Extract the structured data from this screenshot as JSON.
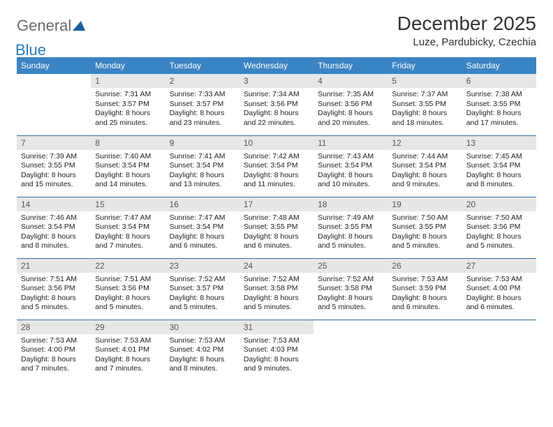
{
  "brand": {
    "word1": "General",
    "word2": "Blue",
    "tri_color": "#1c5f9e"
  },
  "title": "December 2025",
  "location": "Luze, Pardubicky, Czechia",
  "header_bg": "#3b84c4",
  "daynum_bg": "#e7e7e7",
  "row_border": "#3b6fa0",
  "weekdays": [
    "Sunday",
    "Monday",
    "Tuesday",
    "Wednesday",
    "Thursday",
    "Friday",
    "Saturday"
  ],
  "weeks": [
    [
      {
        "n": "",
        "sunrise": "",
        "sunset": "",
        "daylight": ""
      },
      {
        "n": "1",
        "sunrise": "7:31 AM",
        "sunset": "3:57 PM",
        "daylight": "8 hours and 25 minutes."
      },
      {
        "n": "2",
        "sunrise": "7:33 AM",
        "sunset": "3:57 PM",
        "daylight": "8 hours and 23 minutes."
      },
      {
        "n": "3",
        "sunrise": "7:34 AM",
        "sunset": "3:56 PM",
        "daylight": "8 hours and 22 minutes."
      },
      {
        "n": "4",
        "sunrise": "7:35 AM",
        "sunset": "3:56 PM",
        "daylight": "8 hours and 20 minutes."
      },
      {
        "n": "5",
        "sunrise": "7:37 AM",
        "sunset": "3:55 PM",
        "daylight": "8 hours and 18 minutes."
      },
      {
        "n": "6",
        "sunrise": "7:38 AM",
        "sunset": "3:55 PM",
        "daylight": "8 hours and 17 minutes."
      }
    ],
    [
      {
        "n": "7",
        "sunrise": "7:39 AM",
        "sunset": "3:55 PM",
        "daylight": "8 hours and 15 minutes."
      },
      {
        "n": "8",
        "sunrise": "7:40 AM",
        "sunset": "3:54 PM",
        "daylight": "8 hours and 14 minutes."
      },
      {
        "n": "9",
        "sunrise": "7:41 AM",
        "sunset": "3:54 PM",
        "daylight": "8 hours and 13 minutes."
      },
      {
        "n": "10",
        "sunrise": "7:42 AM",
        "sunset": "3:54 PM",
        "daylight": "8 hours and 11 minutes."
      },
      {
        "n": "11",
        "sunrise": "7:43 AM",
        "sunset": "3:54 PM",
        "daylight": "8 hours and 10 minutes."
      },
      {
        "n": "12",
        "sunrise": "7:44 AM",
        "sunset": "3:54 PM",
        "daylight": "8 hours and 9 minutes."
      },
      {
        "n": "13",
        "sunrise": "7:45 AM",
        "sunset": "3:54 PM",
        "daylight": "8 hours and 8 minutes."
      }
    ],
    [
      {
        "n": "14",
        "sunrise": "7:46 AM",
        "sunset": "3:54 PM",
        "daylight": "8 hours and 8 minutes."
      },
      {
        "n": "15",
        "sunrise": "7:47 AM",
        "sunset": "3:54 PM",
        "daylight": "8 hours and 7 minutes."
      },
      {
        "n": "16",
        "sunrise": "7:47 AM",
        "sunset": "3:54 PM",
        "daylight": "8 hours and 6 minutes."
      },
      {
        "n": "17",
        "sunrise": "7:48 AM",
        "sunset": "3:55 PM",
        "daylight": "8 hours and 6 minutes."
      },
      {
        "n": "18",
        "sunrise": "7:49 AM",
        "sunset": "3:55 PM",
        "daylight": "8 hours and 5 minutes."
      },
      {
        "n": "19",
        "sunrise": "7:50 AM",
        "sunset": "3:55 PM",
        "daylight": "8 hours and 5 minutes."
      },
      {
        "n": "20",
        "sunrise": "7:50 AM",
        "sunset": "3:56 PM",
        "daylight": "8 hours and 5 minutes."
      }
    ],
    [
      {
        "n": "21",
        "sunrise": "7:51 AM",
        "sunset": "3:56 PM",
        "daylight": "8 hours and 5 minutes."
      },
      {
        "n": "22",
        "sunrise": "7:51 AM",
        "sunset": "3:56 PM",
        "daylight": "8 hours and 5 minutes."
      },
      {
        "n": "23",
        "sunrise": "7:52 AM",
        "sunset": "3:57 PM",
        "daylight": "8 hours and 5 minutes."
      },
      {
        "n": "24",
        "sunrise": "7:52 AM",
        "sunset": "3:58 PM",
        "daylight": "8 hours and 5 minutes."
      },
      {
        "n": "25",
        "sunrise": "7:52 AM",
        "sunset": "3:58 PM",
        "daylight": "8 hours and 5 minutes."
      },
      {
        "n": "26",
        "sunrise": "7:53 AM",
        "sunset": "3:59 PM",
        "daylight": "8 hours and 6 minutes."
      },
      {
        "n": "27",
        "sunrise": "7:53 AM",
        "sunset": "4:00 PM",
        "daylight": "8 hours and 6 minutes."
      }
    ],
    [
      {
        "n": "28",
        "sunrise": "7:53 AM",
        "sunset": "4:00 PM",
        "daylight": "8 hours and 7 minutes."
      },
      {
        "n": "29",
        "sunrise": "7:53 AM",
        "sunset": "4:01 PM",
        "daylight": "8 hours and 7 minutes."
      },
      {
        "n": "30",
        "sunrise": "7:53 AM",
        "sunset": "4:02 PM",
        "daylight": "8 hours and 8 minutes."
      },
      {
        "n": "31",
        "sunrise": "7:53 AM",
        "sunset": "4:03 PM",
        "daylight": "8 hours and 9 minutes."
      },
      {
        "n": "",
        "sunrise": "",
        "sunset": "",
        "daylight": ""
      },
      {
        "n": "",
        "sunrise": "",
        "sunset": "",
        "daylight": ""
      },
      {
        "n": "",
        "sunrise": "",
        "sunset": "",
        "daylight": ""
      }
    ]
  ],
  "labels": {
    "sunrise": "Sunrise: ",
    "sunset": "Sunset: ",
    "daylight": "Daylight: "
  }
}
